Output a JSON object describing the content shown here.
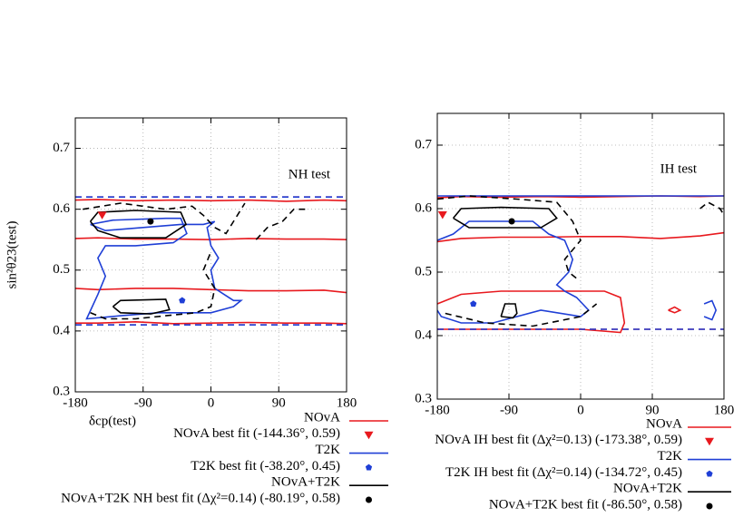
{
  "chart_data": [
    {
      "type": "contour",
      "annotation": "NH test",
      "xlabel": "δcp(test)",
      "ylabel": "sin²θ23(test)",
      "xlim": [
        -180,
        180
      ],
      "ylim": [
        0.3,
        0.75
      ],
      "xticks": [
        -180,
        -90,
        0,
        90,
        180
      ],
      "yticks": [
        0.3,
        0.4,
        0.5,
        0.6,
        0.7
      ],
      "grid": true,
      "series": [
        {
          "name": "NOvA",
          "color": "#e8191e",
          "lines": [
            {
              "dashed": false,
              "x": [
                -180,
                -150,
                -100,
                -50,
                0,
                50,
                100,
                150,
                180
              ],
              "y": [
                0.615,
                0.616,
                0.614,
                0.615,
                0.614,
                0.615,
                0.613,
                0.615,
                0.614
              ]
            },
            {
              "dashed": false,
              "x": [
                -180,
                -150,
                -100,
                -50,
                0,
                50,
                100,
                150,
                180
              ],
              "y": [
                0.552,
                0.553,
                0.551,
                0.551,
                0.55,
                0.552,
                0.551,
                0.551,
                0.55
              ]
            },
            {
              "dashed": false,
              "x": [
                -180,
                -150,
                -100,
                -50,
                0,
                50,
                100,
                150,
                180
              ],
              "y": [
                0.47,
                0.468,
                0.47,
                0.47,
                0.468,
                0.466,
                0.466,
                0.467,
                0.463
              ]
            },
            {
              "dashed": false,
              "x": [
                -180,
                -150,
                -100,
                -50,
                0,
                50,
                100,
                150,
                180
              ],
              "y": [
                0.413,
                0.413,
                0.415,
                0.412,
                0.413,
                0.414,
                0.413,
                0.413,
                0.412
              ]
            },
            {
              "dashed": true,
              "x": [
                -180,
                180
              ],
              "y": [
                0.62,
                0.62
              ]
            },
            {
              "dashed": true,
              "x": [
                -180,
                180
              ],
              "y": [
                0.41,
                0.41
              ]
            }
          ]
        },
        {
          "name": "NOvA best fit (-144.36°, 0.59)",
          "color": "#e8191e",
          "marker": "triangle",
          "x": [
            -144.36
          ],
          "y": [
            0.59
          ]
        },
        {
          "name": "T2K",
          "color": "#1f3fd6",
          "lines": [
            {
              "dashed": false,
              "x": [
                -160,
                -130,
                -60,
                -40,
                -32,
                -50,
                -100,
                -140,
                -150,
                -140,
                -150,
                -165,
                -120,
                -70,
                -35,
                0,
                30,
                40,
                30,
                5,
                0,
                10,
                0,
                -5,
                5,
                -10,
                -40,
                -90,
                -140,
                -160
              ],
              "y": [
                0.575,
                0.582,
                0.585,
                0.585,
                0.56,
                0.545,
                0.54,
                0.54,
                0.52,
                0.49,
                0.46,
                0.42,
                0.425,
                0.43,
                0.43,
                0.43,
                0.44,
                0.45,
                0.45,
                0.47,
                0.5,
                0.52,
                0.54,
                0.57,
                0.58,
                0.575,
                0.575,
                0.57,
                0.565,
                0.575
              ]
            },
            {
              "dashed": true,
              "x": [
                -180,
                180
              ],
              "y": [
                0.62,
                0.62
              ]
            },
            {
              "dashed": true,
              "x": [
                -180,
                180
              ],
              "y": [
                0.41,
                0.41
              ]
            }
          ]
        },
        {
          "name": "T2K best fit (-38.20°, 0.45)",
          "color": "#1f3fd6",
          "marker": "pentagon",
          "x": [
            -38.2
          ],
          "y": [
            0.45
          ]
        },
        {
          "name": "NOvA+T2K",
          "color": "#000000",
          "lines": [
            {
              "dashed": false,
              "x": [
                -160,
                -150,
                -100,
                -40,
                -33,
                -60,
                -120,
                -150,
                -160
              ],
              "y": [
                0.58,
                0.595,
                0.598,
                0.595,
                0.575,
                0.553,
                0.553,
                0.565,
                0.58
              ]
            },
            {
              "dashed": false,
              "x": [
                -130,
                -120,
                -60,
                -55,
                -80,
                -120,
                -130
              ],
              "y": [
                0.44,
                0.45,
                0.452,
                0.435,
                0.428,
                0.43,
                0.44
              ]
            },
            {
              "dashed": true,
              "x": [
                -170,
                -120,
                -60,
                -25,
                -10,
                5,
                20,
                35,
                45
              ],
              "y": [
                0.6,
                0.61,
                0.6,
                0.605,
                0.59,
                0.57,
                0.56,
                0.59,
                0.61
              ]
            },
            {
              "dashed": true,
              "x": [
                60,
                75,
                95,
                110,
                125
              ],
              "y": [
                0.55,
                0.57,
                0.58,
                0.6,
                0.6
              ]
            },
            {
              "dashed": true,
              "x": [
                -160,
                -140,
                -100,
                -60,
                -20,
                0,
                5,
                -10,
                0
              ],
              "y": [
                0.43,
                0.42,
                0.42,
                0.425,
                0.43,
                0.44,
                0.47,
                0.5,
                0.53
              ]
            }
          ]
        },
        {
          "name": "NOvA+T2K NH best fit (Δχ²=0.14) (-80.19°, 0.58)",
          "color": "#000000",
          "marker": "circle",
          "x": [
            -80.19
          ],
          "y": [
            0.58
          ]
        }
      ]
    },
    {
      "type": "contour",
      "annotation": "IH test",
      "xlim": [
        -180,
        180
      ],
      "ylim": [
        0.3,
        0.75
      ],
      "xticks": [
        -180,
        -90,
        0,
        90,
        180
      ],
      "yticks": [
        0.3,
        0.4,
        0.5,
        0.6,
        0.7
      ],
      "grid": true,
      "series": [
        {
          "name": "NOvA",
          "color": "#e8191e",
          "lines": [
            {
              "dashed": false,
              "x": [
                -180,
                -150,
                -100,
                -50,
                0,
                50,
                100,
                150,
                180
              ],
              "y": [
                0.617,
                0.619,
                0.618,
                0.619,
                0.618,
                0.619,
                0.62,
                0.619,
                0.62
              ]
            },
            {
              "dashed": false,
              "x": [
                -180,
                -150,
                -100,
                -50,
                0,
                50,
                100,
                150,
                180
              ],
              "y": [
                0.548,
                0.553,
                0.555,
                0.555,
                0.556,
                0.556,
                0.553,
                0.557,
                0.562
              ]
            },
            {
              "dashed": false,
              "x": [
                -180,
                -150,
                -100,
                30,
                50,
                55,
                50,
                0,
                -100,
                -180
              ],
              "y": [
                0.45,
                0.465,
                0.47,
                0.47,
                0.46,
                0.42,
                0.405,
                0.41,
                0.41,
                0.41
              ]
            },
            {
              "dashed": false,
              "x": [
                110,
                118,
                125,
                118,
                110
              ],
              "y": [
                0.44,
                0.445,
                0.44,
                0.436,
                0.44
              ]
            },
            {
              "dashed": true,
              "x": [
                -180,
                180
              ],
              "y": [
                0.41,
                0.41
              ]
            }
          ]
        },
        {
          "name": "NOvA IH best fit (Δχ²=0.13) (-173.38°, 0.59)",
          "color": "#e8191e",
          "marker": "triangle",
          "x": [
            -173.38
          ],
          "y": [
            0.59
          ]
        },
        {
          "name": "T2K",
          "color": "#1f3fd6",
          "lines": [
            {
              "dashed": false,
              "x": [
                -180,
                180
              ],
              "y": [
                0.62,
                0.62
              ]
            },
            {
              "dashed": false,
              "x": [
                -180,
                -160,
                -140,
                -60,
                -40,
                -20,
                -10,
                -15,
                -30,
                -20,
                -5,
                10,
                0,
                -50,
                -80,
                -110,
                -150,
                -175,
                -180
              ],
              "y": [
                0.55,
                0.56,
                0.58,
                0.58,
                0.56,
                0.55,
                0.52,
                0.5,
                0.48,
                0.47,
                0.46,
                0.44,
                0.43,
                0.44,
                0.43,
                0.42,
                0.42,
                0.43,
                0.44
              ]
            },
            {
              "dashed": false,
              "x": [
                155,
                165,
                170,
                165,
                155
              ],
              "y": [
                0.45,
                0.455,
                0.44,
                0.425,
                0.43
              ]
            },
            {
              "dashed": true,
              "x": [
                -180,
                180
              ],
              "y": [
                0.41,
                0.41
              ]
            }
          ]
        },
        {
          "name": "T2K IH best fit (Δχ²=0.14) (-134.72°, 0.45)",
          "color": "#1f3fd6",
          "marker": "pentagon",
          "x": [
            -134.72
          ],
          "y": [
            0.45
          ]
        },
        {
          "name": "NOvA+T2K",
          "color": "#000000",
          "lines": [
            {
              "dashed": false,
              "x": [
                -160,
                -150,
                -100,
                -40,
                -30,
                -50,
                -140,
                -160
              ],
              "y": [
                0.585,
                0.6,
                0.602,
                0.6,
                0.585,
                0.57,
                0.57,
                0.585
              ]
            },
            {
              "dashed": false,
              "x": [
                -100,
                -95,
                -82,
                -80,
                -85,
                -100
              ],
              "y": [
                0.43,
                0.45,
                0.45,
                0.435,
                0.428,
                0.43
              ]
            },
            {
              "dashed": true,
              "x": [
                -180,
                -140,
                -80,
                -30,
                -10,
                0,
                -20,
                -15,
                -5
              ],
              "y": [
                0.615,
                0.62,
                0.615,
                0.61,
                0.58,
                0.55,
                0.52,
                0.5,
                0.49
              ]
            },
            {
              "dashed": true,
              "x": [
                -170,
                -120,
                -60,
                -20,
                0,
                20
              ],
              "y": [
                0.435,
                0.42,
                0.415,
                0.425,
                0.43,
                0.45
              ]
            },
            {
              "dashed": true,
              "x": [
                150,
                160,
                175,
                180
              ],
              "y": [
                0.6,
                0.61,
                0.6,
                0.59
              ]
            }
          ]
        },
        {
          "name": "NOvA+T2K best fit  (-86.50°, 0.58)",
          "color": "#000000",
          "marker": "circle",
          "x": [
            -86.5
          ],
          "y": [
            0.58
          ]
        }
      ]
    }
  ]
}
